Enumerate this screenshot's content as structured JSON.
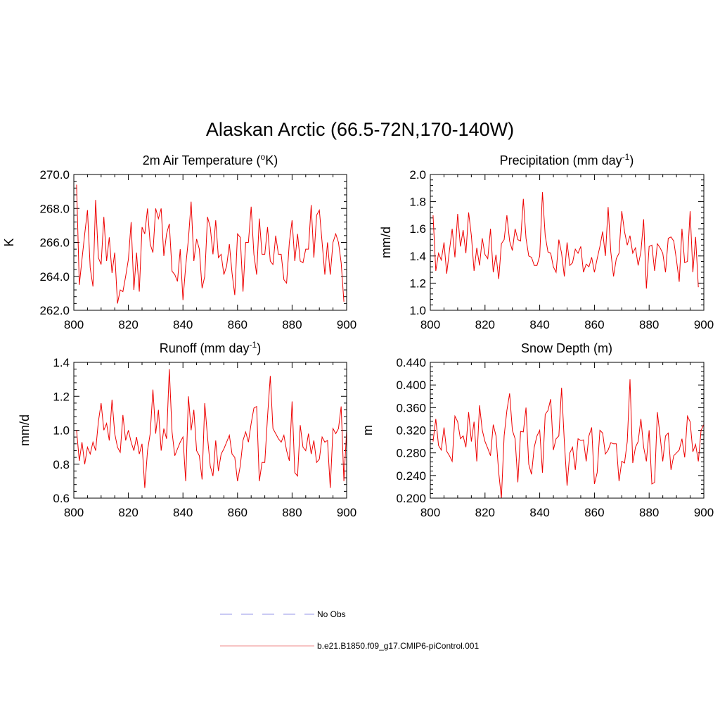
{
  "title": "Alaskan Arctic (66.5-72N,170-140W)",
  "colors": {
    "model": "#ee0000",
    "obs": "#aaaaee"
  },
  "legend": {
    "obs_label": "No Obs",
    "model_label": "b.e21.B1850.f09_g17.CMIP6-piControl.001"
  },
  "chart_data": [
    {
      "type": "line",
      "title_main": "2m Air Temperature (",
      "title_sup": "o",
      "title_tail": "K)",
      "ylabel": "K",
      "xlim": [
        800,
        900
      ],
      "ylim": [
        262.0,
        270.0
      ],
      "xticks": [
        "800",
        "820",
        "840",
        "860",
        "880",
        "900"
      ],
      "yticks": [
        "262.0",
        "264.0",
        "266.0",
        "268.0",
        "270.0"
      ],
      "x_start": 801,
      "values": [
        269.4,
        263.5,
        265.0,
        266.5,
        267.9,
        264.5,
        263.4,
        268.5,
        265.1,
        264.7,
        267.5,
        264.9,
        266.3,
        264.2,
        265.4,
        262.4,
        263.2,
        263.1,
        264.0,
        265.0,
        267.2,
        263.2,
        265.4,
        263.1,
        266.9,
        266.5,
        268.0,
        265.9,
        265.4,
        268.0,
        267.4,
        268.0,
        265.2,
        266.5,
        267.1,
        264.3,
        264.1,
        263.7,
        265.6,
        262.6,
        264.6,
        266.2,
        268.4,
        264.9,
        266.2,
        265.6,
        263.3,
        264.0,
        267.5,
        266.9,
        265.3,
        267.3,
        265.1,
        265.3,
        264.1,
        264.6,
        265.9,
        264.2,
        262.9,
        266.5,
        266.3,
        263.1,
        266.0,
        266.0,
        268.1,
        265.3,
        264.1,
        267.4,
        265.3,
        265.3,
        266.9,
        264.9,
        264.7,
        266.4,
        265.3,
        265.3,
        263.8,
        263.6,
        266.0,
        267.3,
        264.9,
        266.5,
        264.9,
        264.8,
        265.6,
        265.6,
        268.2,
        265.1,
        267.6,
        267.9,
        266.0,
        264.1,
        266.0,
        264.1,
        266.0,
        266.5,
        266.0,
        264.8,
        262.5
      ]
    },
    {
      "type": "line",
      "title_main": "Precipitation (mm day",
      "title_sup": "-1",
      "title_tail": ")",
      "ylabel": "mm/d",
      "xlim": [
        800,
        900
      ],
      "ylim": [
        1.0,
        2.0
      ],
      "xticks": [
        "800",
        "820",
        "840",
        "860",
        "880",
        "900"
      ],
      "yticks": [
        "1.0",
        "1.2",
        "1.4",
        "1.6",
        "1.8",
        "2.0"
      ],
      "x_start": 801,
      "values": [
        1.7,
        1.29,
        1.42,
        1.37,
        1.5,
        1.27,
        1.44,
        1.6,
        1.39,
        1.71,
        1.47,
        1.59,
        1.42,
        1.72,
        1.55,
        1.29,
        1.46,
        1.33,
        1.53,
        1.41,
        1.38,
        1.6,
        1.28,
        1.41,
        1.23,
        1.49,
        1.52,
        1.7,
        1.51,
        1.44,
        1.6,
        1.52,
        1.51,
        1.82,
        1.53,
        1.4,
        1.39,
        1.33,
        1.33,
        1.4,
        1.87,
        1.55,
        1.43,
        1.42,
        1.32,
        1.28,
        1.52,
        1.42,
        1.25,
        1.5,
        1.33,
        1.35,
        1.45,
        1.42,
        1.47,
        1.28,
        1.34,
        1.32,
        1.39,
        1.28,
        1.38,
        1.47,
        1.58,
        1.4,
        1.76,
        1.43,
        1.25,
        1.38,
        1.42,
        1.73,
        1.58,
        1.48,
        1.55,
        1.42,
        1.46,
        1.33,
        1.43,
        1.67,
        1.16,
        1.47,
        1.48,
        1.29,
        1.49,
        1.46,
        1.42,
        1.28,
        1.53,
        1.54,
        1.51,
        1.37,
        1.21,
        1.6,
        1.35,
        1.36,
        1.73,
        1.28,
        1.54,
        1.17
      ]
    },
    {
      "type": "line",
      "title_main": "Runoff (mm day",
      "title_sup": "-1",
      "title_tail": ")",
      "ylabel": "mm/d",
      "xlim": [
        800,
        900
      ],
      "ylim": [
        0.6,
        1.4
      ],
      "xticks": [
        "800",
        "820",
        "840",
        "860",
        "880",
        "900"
      ],
      "yticks": [
        "0.6",
        "0.8",
        "1.0",
        "1.2",
        "1.4"
      ],
      "x_start": 801,
      "values": [
        1.0,
        0.82,
        0.93,
        0.8,
        0.9,
        0.86,
        0.93,
        0.88,
        1.05,
        1.16,
        1.0,
        1.04,
        0.94,
        1.18,
        0.98,
        0.9,
        0.87,
        1.09,
        0.94,
        1.0,
        0.93,
        0.88,
        0.96,
        0.86,
        0.92,
        0.66,
        0.88,
        0.98,
        1.24,
        0.98,
        1.12,
        0.88,
        1.01,
        0.95,
        1.36,
        0.99,
        0.85,
        0.89,
        0.93,
        0.96,
        0.7,
        1.2,
        1.0,
        1.12,
        0.88,
        0.85,
        0.71,
        1.16,
        0.96,
        0.79,
        0.73,
        0.94,
        0.76,
        0.86,
        0.89,
        0.93,
        0.97,
        0.86,
        0.84,
        0.7,
        0.79,
        0.94,
        0.99,
        0.93,
        1.04,
        1.13,
        1.14,
        0.7,
        0.81,
        0.81,
        1.08,
        1.32,
        1.01,
        0.98,
        0.95,
        0.93,
        0.97,
        0.88,
        0.82,
        1.17,
        0.75,
        0.73,
        1.03,
        0.9,
        0.88,
        0.98,
        0.86,
        0.94,
        0.81,
        0.83,
        0.96,
        0.93,
        0.94,
        0.66,
        1.01,
        0.98,
        1.01,
        1.14,
        0.7,
        1.0
      ]
    },
    {
      "type": "line",
      "title_main": "Snow Depth (m)",
      "title_sup": "",
      "title_tail": "",
      "ylabel": "m",
      "xlim": [
        800,
        900
      ],
      "ylim": [
        0.2,
        0.44
      ],
      "xticks": [
        "800",
        "820",
        "840",
        "860",
        "880",
        "900"
      ],
      "yticks": [
        "0.200",
        "0.240",
        "0.280",
        "0.320",
        "0.360",
        "0.400",
        "0.440"
      ],
      "x_start": 801,
      "values": [
        0.3,
        0.34,
        0.293,
        0.285,
        0.325,
        0.283,
        0.275,
        0.265,
        0.345,
        0.335,
        0.305,
        0.31,
        0.29,
        0.352,
        0.3,
        0.335,
        0.265,
        0.364,
        0.32,
        0.3,
        0.288,
        0.275,
        0.33,
        0.31,
        0.245,
        0.2,
        0.31,
        0.355,
        0.385,
        0.32,
        0.305,
        0.228,
        0.318,
        0.317,
        0.36,
        0.26,
        0.242,
        0.29,
        0.31,
        0.32,
        0.245,
        0.348,
        0.355,
        0.375,
        0.285,
        0.305,
        0.31,
        0.395,
        0.3,
        0.222,
        0.28,
        0.29,
        0.25,
        0.305,
        0.302,
        0.303,
        0.265,
        0.31,
        0.325,
        0.225,
        0.245,
        0.32,
        0.315,
        0.278,
        0.285,
        0.298,
        0.296,
        0.296,
        0.23,
        0.265,
        0.262,
        0.3,
        0.41,
        0.262,
        0.29,
        0.3,
        0.34,
        0.29,
        0.265,
        0.32,
        0.225,
        0.228,
        0.352,
        0.31,
        0.265,
        0.31,
        0.315,
        0.25,
        0.275,
        0.28,
        0.285,
        0.305,
        0.272,
        0.345,
        0.335,
        0.282,
        0.295,
        0.265,
        0.32,
        0.33
      ]
    }
  ]
}
